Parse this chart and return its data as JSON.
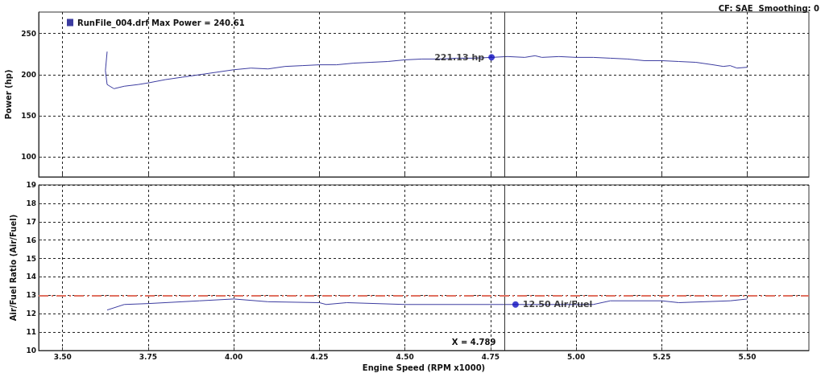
{
  "chart_data": [
    {
      "type": "line",
      "subtitle": "CF: SAE  Smoothing: 0",
      "ylabel": "Power (hp)",
      "xlim": [
        3.43,
        5.68
      ],
      "xticks": [
        3.5,
        3.75,
        4.0,
        4.25,
        4.5,
        4.75,
        5.0,
        5.25,
        5.5
      ],
      "ylim": [
        76,
        276
      ],
      "yticks": [
        100,
        150,
        200,
        250
      ],
      "tick_labels": "y",
      "grid": true,
      "legend": "top left",
      "series": [
        {
          "name": "RunFile_004.drf Max Power = 240.61",
          "color": "#3c3ca0",
          "x": [
            3.63,
            3.625,
            3.63,
            3.65,
            3.68,
            3.72,
            3.75,
            3.8,
            3.85,
            3.9,
            3.95,
            4.0,
            4.05,
            4.1,
            4.15,
            4.2,
            4.25,
            4.3,
            4.35,
            4.4,
            4.45,
            4.5,
            4.55,
            4.6,
            4.65,
            4.7,
            4.753,
            4.8,
            4.85,
            4.88,
            4.9,
            4.95,
            5.0,
            5.05,
            5.1,
            5.15,
            5.2,
            5.25,
            5.3,
            5.35,
            5.4,
            5.43,
            5.45,
            5.47,
            5.5
          ],
          "values": [
            228,
            205,
            188,
            183,
            186,
            188,
            190,
            194,
            197,
            200,
            203,
            206,
            208,
            207,
            210,
            211,
            212,
            212,
            214,
            215,
            216,
            218,
            219,
            219,
            220,
            220,
            221,
            222,
            221,
            223,
            221,
            222,
            221,
            221,
            220,
            219,
            217,
            217,
            216,
            215,
            212,
            210,
            211,
            208,
            209
          ]
        }
      ],
      "annotations": [
        {
          "text": "221.13 hp",
          "x": 4.753,
          "y": 221.13
        }
      ],
      "ref_lines": [
        {
          "axis": "x",
          "value": 4.789,
          "color": "#333333"
        }
      ]
    },
    {
      "type": "line",
      "xlabel": "Engine Speed (RPM x1000)",
      "ylabel": "Air/Fuel Ratio (Air/Fuel)",
      "xlim": [
        3.43,
        5.68
      ],
      "xticks": [
        {
          "value": 3.5,
          "label": "3.50"
        },
        {
          "value": 3.75,
          "label": "3.75"
        },
        {
          "value": 4.0,
          "label": "4.00"
        },
        {
          "value": 4.25,
          "label": "4.25"
        },
        {
          "value": 4.5,
          "label": "4.50"
        },
        {
          "value": 4.75,
          "label": "4.75"
        },
        {
          "value": 5.0,
          "label": "5.00"
        },
        {
          "value": 5.25,
          "label": "5.25"
        },
        {
          "value": 5.5,
          "label": "5.50"
        }
      ],
      "ylim": [
        10,
        19
      ],
      "yticks": [
        10,
        11,
        12,
        13,
        14,
        15,
        16,
        17,
        18,
        19
      ],
      "grid": true,
      "series": [
        {
          "color": "#3c3ca0",
          "x": [
            3.63,
            3.68,
            3.75,
            3.9,
            4.0,
            4.1,
            4.25,
            4.27,
            4.33,
            4.5,
            4.75,
            5.0,
            5.05,
            5.1,
            5.25,
            5.3,
            5.45,
            5.5
          ],
          "values": [
            12.2,
            12.5,
            12.55,
            12.7,
            12.8,
            12.65,
            12.6,
            12.5,
            12.6,
            12.5,
            12.5,
            12.5,
            12.5,
            12.7,
            12.7,
            12.6,
            12.7,
            12.8
          ]
        }
      ],
      "annotations": [
        {
          "text": "12.50 Air/Fuel",
          "x": 4.823,
          "y": 12.5
        }
      ],
      "ref_lines": [
        {
          "axis": "x",
          "value": 4.789,
          "label": "X = 4.789",
          "color": "#333333"
        },
        {
          "axis": "y",
          "value": 13,
          "color": "#e07060",
          "line_style": "dashed"
        }
      ]
    }
  ]
}
